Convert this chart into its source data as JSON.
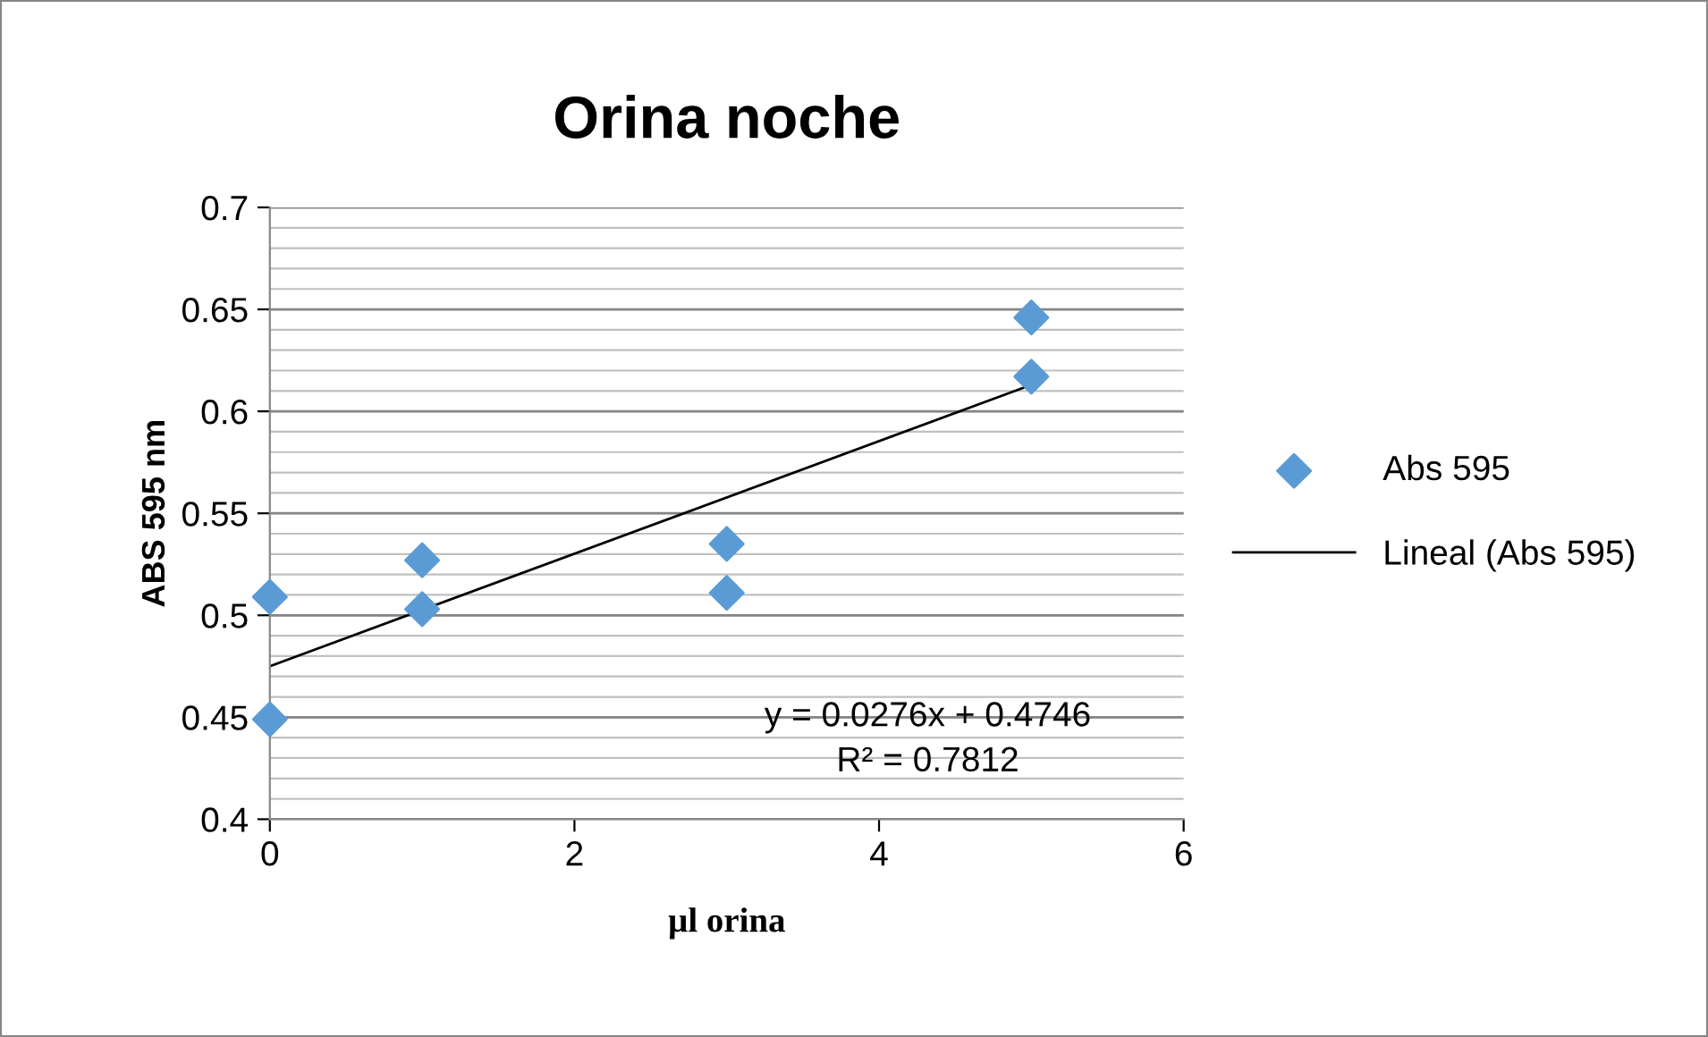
{
  "chart_data": {
    "type": "scatter",
    "title": "Orina noche",
    "xlabel": "µl orina",
    "ylabel": "ABS 595 nm",
    "xlim": [
      0,
      6
    ],
    "xticks": [
      0,
      2,
      4,
      6
    ],
    "ylim": [
      0.4,
      0.7
    ],
    "yticks": [
      0.4,
      0.45,
      0.5,
      0.55,
      0.6,
      0.65,
      0.7
    ],
    "grid": "y",
    "legend": "right",
    "series": [
      {
        "name": "Abs 595",
        "color": "#5b9bd5",
        "marker": "diamond",
        "x": [
          0,
          0,
          1,
          1,
          3,
          3,
          5,
          5
        ],
        "values": [
          0.509,
          0.449,
          0.527,
          0.503,
          0.535,
          0.511,
          0.646,
          0.617
        ]
      },
      {
        "name": "Lineal (Abs 595)",
        "color": "#000000",
        "type": "line",
        "x": [
          0,
          5
        ],
        "values": [
          0.475,
          0.613
        ]
      }
    ],
    "annotations": [
      "y = 0.0276x + 0.4746\nR² = 0.7812"
    ]
  }
}
